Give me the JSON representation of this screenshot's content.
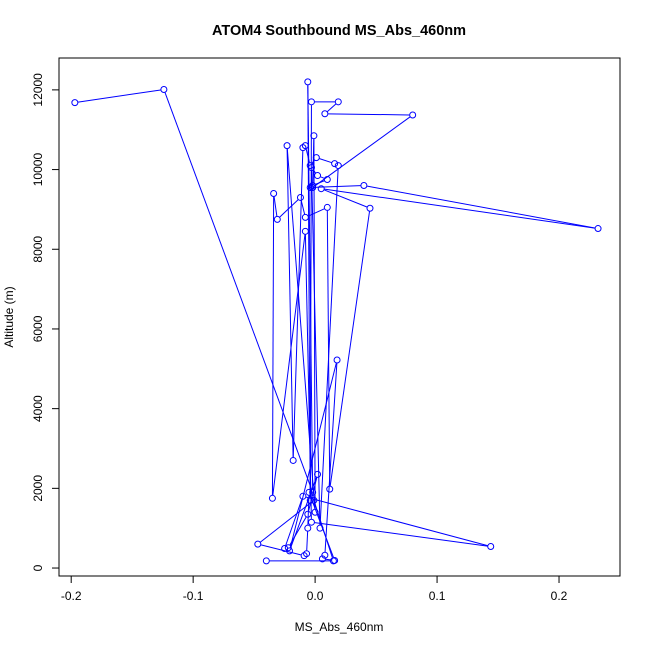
{
  "chart_data": {
    "type": "line",
    "title": "ATOM4 Southbound MS_Abs_460nm",
    "xlabel": "MS_Abs_460nm",
    "ylabel": "Altitude (m)",
    "xlim": [
      -0.21,
      0.25
    ],
    "ylim": [
      -200,
      12800
    ],
    "x_ticks": [
      -0.2,
      -0.1,
      0.0,
      0.1,
      0.2
    ],
    "x_tick_labels": [
      "-0.2",
      "-0.1",
      "0.0",
      "0.1",
      "0.2"
    ],
    "y_ticks": [
      0,
      2000,
      4000,
      6000,
      8000,
      10000,
      12000
    ],
    "y_tick_labels": [
      "0",
      "2000",
      "4000",
      "6000",
      "8000",
      "10000",
      "12000"
    ],
    "grid": false,
    "series": [
      {
        "color": "#0000ff",
        "marker": "open-circle",
        "points": [
          {
            "x": -0.197,
            "y": 11680
          },
          {
            "x": -0.124,
            "y": 12010
          },
          {
            "x": -0.002,
            "y": 1900
          },
          {
            "x": -0.006,
            "y": 12200
          },
          {
            "x": -0.004,
            "y": 1700
          },
          {
            "x": -0.003,
            "y": 11700
          },
          {
            "x": 0.019,
            "y": 11700
          },
          {
            "x": 0.008,
            "y": 11400
          },
          {
            "x": 0.08,
            "y": 11370
          },
          {
            "x": -0.002,
            "y": 9550
          },
          {
            "x": -0.001,
            "y": 10850
          },
          {
            "x": 0.0,
            "y": 1400
          },
          {
            "x": -0.023,
            "y": 10600
          },
          {
            "x": -0.018,
            "y": 2700
          },
          {
            "x": -0.01,
            "y": 10550
          },
          {
            "x": -0.008,
            "y": 10600
          },
          {
            "x": -0.004,
            "y": 10100
          },
          {
            "x": 0.001,
            "y": 10300
          },
          {
            "x": 0.016,
            "y": 10150
          },
          {
            "x": 0.019,
            "y": 10100
          },
          {
            "x": 0.004,
            "y": 1000
          },
          {
            "x": -0.003,
            "y": 10050
          },
          {
            "x": 0.002,
            "y": 9850
          },
          {
            "x": 0.01,
            "y": 9750
          },
          {
            "x": -0.002,
            "y": 9600
          },
          {
            "x": -0.004,
            "y": 9550
          },
          {
            "x": 0.04,
            "y": 9600
          },
          {
            "x": 0.232,
            "y": 8520
          },
          {
            "x": 0.005,
            "y": 9520
          },
          {
            "x": 0.045,
            "y": 9030
          },
          {
            "x": 0.012,
            "y": 1980
          },
          {
            "x": 0.01,
            "y": 9050
          },
          {
            "x": -0.008,
            "y": 8800
          },
          {
            "x": -0.012,
            "y": 9300
          },
          {
            "x": -0.031,
            "y": 8750
          },
          {
            "x": -0.034,
            "y": 9400
          },
          {
            "x": -0.035,
            "y": 1750
          },
          {
            "x": -0.008,
            "y": 8450
          },
          {
            "x": -0.003,
            "y": 1150
          },
          {
            "x": 0.144,
            "y": 540
          },
          {
            "x": -0.01,
            "y": 1800
          },
          {
            "x": -0.025,
            "y": 490
          },
          {
            "x": -0.022,
            "y": 510
          },
          {
            "x": -0.006,
            "y": 1350
          },
          {
            "x": 0.002,
            "y": 2350
          },
          {
            "x": -0.021,
            "y": 430
          },
          {
            "x": 0.018,
            "y": 5220
          },
          {
            "x": 0.008,
            "y": 320
          },
          {
            "x": 0.006,
            "y": 230
          },
          {
            "x": 0.016,
            "y": 190
          },
          {
            "x": -0.005,
            "y": 1900
          },
          {
            "x": -0.006,
            "y": 1000
          },
          {
            "x": -0.007,
            "y": 360
          },
          {
            "x": -0.009,
            "y": 310
          },
          {
            "x": -0.047,
            "y": 600
          },
          {
            "x": -0.001,
            "y": 1700
          },
          {
            "x": 0.015,
            "y": 180
          },
          {
            "x": -0.04,
            "y": 180
          }
        ]
      }
    ]
  }
}
